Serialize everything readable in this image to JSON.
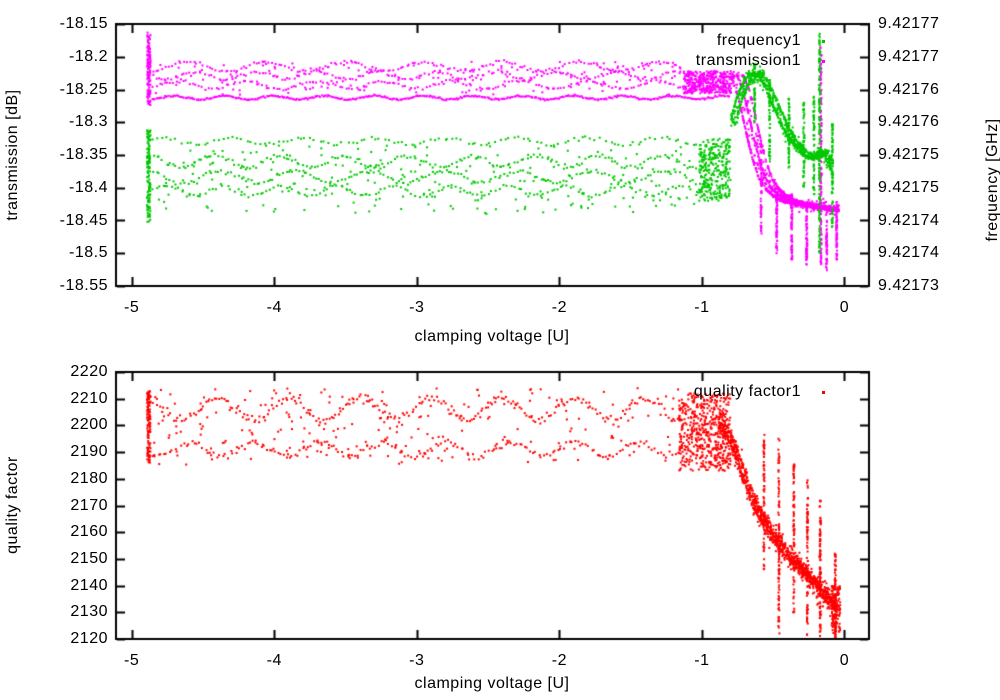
{
  "figure": {
    "background": "#ffffff",
    "text_color": "#000000",
    "frame_color": "#000000"
  },
  "chart_data": [
    {
      "id": "transmission-frequency-vs-voltage",
      "type": "scatter",
      "title": "",
      "xlabel": "clamping voltage [U]",
      "ylabel": "transmission [dB]",
      "y2label": "frequency [GHz]",
      "xlim": [
        -5.11,
        0.172
      ],
      "ylim": [
        -18.55,
        -18.15
      ],
      "y2lim": [
        9.42173,
        9.42177
      ],
      "grid": false,
      "xticks": [
        {
          "label": "-5",
          "value": -5
        },
        {
          "label": "-4",
          "value": -4
        },
        {
          "label": "-3",
          "value": -3
        },
        {
          "label": "-2",
          "value": -2
        },
        {
          "label": "-1",
          "value": -1
        },
        {
          "label": "0",
          "value": 0
        }
      ],
      "yticks": [
        {
          "label": "-18.15",
          "value": -18.15
        },
        {
          "label": "-18.2",
          "value": -18.2
        },
        {
          "label": "-18.25",
          "value": -18.25
        },
        {
          "label": "-18.3",
          "value": -18.3
        },
        {
          "label": "-18.35",
          "value": -18.35
        },
        {
          "label": "-18.4",
          "value": -18.4
        },
        {
          "label": "-18.45",
          "value": -18.45
        },
        {
          "label": "-18.5",
          "value": -18.5
        },
        {
          "label": "-18.55",
          "value": -18.55
        }
      ],
      "y2ticks": [
        "9.42177",
        "9.42177",
        "9.42176",
        "9.42176",
        "9.42175",
        "9.42175",
        "9.42174",
        "9.42174",
        "9.42173"
      ],
      "legend": {
        "position": "top-right-inside",
        "entries": [
          {
            "label": "frequency1",
            "color": "#00c800"
          },
          {
            "label": "transmission1",
            "color": "#ff00ff"
          }
        ]
      },
      "series": [
        {
          "name": "transmission1",
          "color": "#ff00ff",
          "axis": "y1",
          "point_size": 2,
          "segments": [
            {
              "type": "vcluster",
              "x": -4.88,
              "x_jitter": 0.012,
              "y_min": -18.275,
              "y_max": -18.163,
              "n": 130
            },
            {
              "type": "wavy",
              "x_min": -4.86,
              "x_max": -1.13,
              "y": -18.215,
              "amplitude": 0.007,
              "period": 0.55,
              "jitter": 0.004,
              "n": 170
            },
            {
              "type": "wavy",
              "x_min": -4.86,
              "x_max": -1.13,
              "y": -18.229,
              "amplitude": 0.006,
              "period": 0.42,
              "jitter": 0.0045,
              "n": 170
            },
            {
              "type": "wavy",
              "x_min": -4.86,
              "x_max": -1.13,
              "y": -18.243,
              "amplitude": 0.006,
              "period": 0.48,
              "jitter": 0.004,
              "n": 160
            },
            {
              "type": "wavy",
              "x_min": -4.86,
              "x_max": -0.8,
              "y": -18.2625,
              "amplitude": 0.0028,
              "period": 0.35,
              "jitter": 0.0022,
              "n": 420
            },
            {
              "type": "scatter",
              "x_min": -4.86,
              "x_max": -1.13,
              "y_min": -18.258,
              "y_max": -18.207,
              "n": 140
            },
            {
              "type": "scatter",
              "x_min": -1.13,
              "x_max": -0.79,
              "y_min": -18.256,
              "y_max": -18.222,
              "n": 380
            },
            {
              "type": "curve",
              "points": [
                [
                  -0.8,
                  -18.228
                ],
                [
                  -0.76,
                  -18.25
                ],
                [
                  -0.72,
                  -18.285
                ],
                [
                  -0.68,
                  -18.325
                ],
                [
                  -0.64,
                  -18.36
                ],
                [
                  -0.6,
                  -18.385
                ],
                [
                  -0.55,
                  -18.402
                ],
                [
                  -0.5,
                  -18.412
                ],
                [
                  -0.45,
                  -18.418
                ],
                [
                  -0.4,
                  -18.422
                ],
                [
                  -0.35,
                  -18.425
                ],
                [
                  -0.3,
                  -18.427
                ],
                [
                  -0.25,
                  -18.428
                ],
                [
                  -0.2,
                  -18.43
                ],
                [
                  -0.15,
                  -18.432
                ],
                [
                  -0.1,
                  -18.433
                ],
                [
                  -0.04,
                  -18.435
                ]
              ],
              "strand_offsets": [
                0,
                0.045,
                0.09
              ],
              "n_per_strand": 300,
              "strand_spread": 0.003,
              "x_jitter": 0.008,
              "n_diffuse": 250,
              "diffuse_spread": 0.012
            },
            {
              "type": "spike",
              "x": -0.585,
              "y_min": -18.47,
              "y_max": -18.33,
              "n": 60
            },
            {
              "type": "spike",
              "x": -0.475,
              "y_min": -18.5,
              "y_max": -18.4,
              "n": 70
            },
            {
              "type": "spike",
              "x": -0.37,
              "y_min": -18.51,
              "y_max": -18.41,
              "n": 70
            },
            {
              "type": "spike",
              "x": -0.265,
              "y_min": -18.52,
              "y_max": -18.42,
              "n": 70
            },
            {
              "type": "spike",
              "x": -0.165,
              "y_min": -18.525,
              "y_max": -18.185,
              "n": 150
            },
            {
              "type": "spike",
              "x": -0.125,
              "y_min": -18.53,
              "y_max": -18.43,
              "n": 50
            },
            {
              "type": "spike",
              "x": -0.055,
              "y_min": -18.51,
              "y_max": -18.42,
              "n": 60
            }
          ]
        },
        {
          "name": "frequency1",
          "color": "#00c800",
          "axis": "y2",
          "point_size": 2,
          "note": "segment y values given in left-axis display units; right axis maps -18.55..-18.15 dB to 9.42173..9.42177 GHz",
          "segments": [
            {
              "type": "vcluster",
              "x": -4.88,
              "x_jitter": 0.012,
              "y_min": -18.455,
              "y_max": -18.312,
              "n": 130
            },
            {
              "type": "wavy",
              "x_min": -4.86,
              "x_max": -0.98,
              "y": -18.329,
              "amplitude": 0.005,
              "period": 0.5,
              "jitter": 0.004,
              "n": 120
            },
            {
              "type": "wavy",
              "x_min": -4.86,
              "x_max": -0.98,
              "y": -18.36,
              "amplitude": 0.009,
              "period": 0.45,
              "jitter": 0.006,
              "n": 170
            },
            {
              "type": "wavy",
              "x_min": -4.86,
              "x_max": -0.98,
              "y": -18.383,
              "amplitude": 0.009,
              "period": 0.52,
              "jitter": 0.006,
              "n": 170
            },
            {
              "type": "wavy",
              "x_min": -4.86,
              "x_max": -0.98,
              "y": -18.405,
              "amplitude": 0.008,
              "period": 0.4,
              "jitter": 0.005,
              "n": 150
            },
            {
              "type": "scatter",
              "x_min": -4.86,
              "x_max": -0.98,
              "y_min": -18.44,
              "y_max": -18.335,
              "n": 220
            },
            {
              "type": "scatter",
              "x_min": -1.02,
              "x_max": -0.8,
              "y_min": -18.42,
              "y_max": -18.325,
              "n": 300
            },
            {
              "type": "curve",
              "points": [
                [
                  -0.8,
                  -18.3
                ],
                [
                  -0.76,
                  -18.265
                ],
                [
                  -0.72,
                  -18.243
                ],
                [
                  -0.68,
                  -18.23
                ],
                [
                  -0.64,
                  -18.225
                ],
                [
                  -0.6,
                  -18.23
                ],
                [
                  -0.56,
                  -18.245
                ],
                [
                  -0.52,
                  -18.265
                ],
                [
                  -0.48,
                  -18.285
                ],
                [
                  -0.44,
                  -18.305
                ],
                [
                  -0.4,
                  -18.32
                ],
                [
                  -0.36,
                  -18.332
                ],
                [
                  -0.32,
                  -18.342
                ],
                [
                  -0.28,
                  -18.35
                ],
                [
                  -0.24,
                  -18.355
                ],
                [
                  -0.2,
                  -18.35
                ],
                [
                  -0.16,
                  -18.345
                ],
                [
                  -0.12,
                  -18.36
                ],
                [
                  -0.08,
                  -18.38
                ]
              ],
              "strand_offsets": [
                0,
                0.04
              ],
              "n_per_strand": 280,
              "strand_spread": 0.005,
              "x_jitter": 0.006,
              "n_diffuse": 300,
              "diffuse_spread": 0.018
            },
            {
              "type": "spike",
              "x": -0.63,
              "y_min": -18.3,
              "y_max": -18.21,
              "n": 50
            },
            {
              "type": "spike",
              "x": -0.525,
              "y_min": -18.36,
              "y_max": -18.235,
              "n": 60
            },
            {
              "type": "spike",
              "x": -0.39,
              "y_min": -18.37,
              "y_max": -18.26,
              "n": 60
            },
            {
              "type": "spike",
              "x": -0.285,
              "y_min": -18.4,
              "y_max": -18.27,
              "n": 60
            },
            {
              "type": "spike",
              "x": -0.215,
              "y_min": -18.41,
              "y_max": -18.26,
              "n": 60
            },
            {
              "type": "spike",
              "x": -0.175,
              "y_min": -18.5,
              "y_max": -18.163,
              "n": 160
            },
            {
              "type": "spike",
              "x": -0.085,
              "y_min": -18.46,
              "y_max": -18.3,
              "n": 70
            }
          ]
        }
      ]
    },
    {
      "id": "quality-factor-vs-voltage",
      "type": "scatter",
      "title": "",
      "xlabel": "clamping voltage [U]",
      "ylabel": "quality factor",
      "y2label": "",
      "xlim": [
        -5.11,
        0.172
      ],
      "ylim": [
        2120,
        2220
      ],
      "grid": false,
      "xticks": [
        {
          "label": "-5",
          "value": -5
        },
        {
          "label": "-4",
          "value": -4
        },
        {
          "label": "-3",
          "value": -3
        },
        {
          "label": "-2",
          "value": -2
        },
        {
          "label": "-1",
          "value": -1
        },
        {
          "label": "0",
          "value": 0
        }
      ],
      "yticks": [
        {
          "label": "2220",
          "value": 2220
        },
        {
          "label": "2210",
          "value": 2210
        },
        {
          "label": "2200",
          "value": 2200
        },
        {
          "label": "2190",
          "value": 2190
        },
        {
          "label": "2180",
          "value": 2180
        },
        {
          "label": "2170",
          "value": 2170
        },
        {
          "label": "2160",
          "value": 2160
        },
        {
          "label": "2150",
          "value": 2150
        },
        {
          "label": "2140",
          "value": 2140
        },
        {
          "label": "2130",
          "value": 2130
        },
        {
          "label": "2120",
          "value": 2120
        }
      ],
      "y2ticks": [],
      "legend": {
        "position": "top-right-inside",
        "entries": [
          {
            "label": "quality factor1",
            "color": "#ff0000"
          }
        ]
      },
      "series": [
        {
          "name": "quality factor1",
          "color": "#ff0000",
          "axis": "y1",
          "point_size": 2,
          "segments": [
            {
              "type": "vcluster",
              "x": -4.88,
              "x_jitter": 0.012,
              "y_min": 2186,
              "y_max": 2214,
              "n": 120
            },
            {
              "type": "wavy",
              "x_min": -4.86,
              "x_max": -1.16,
              "y": 2206,
              "amplitude": 4,
              "period": 0.5,
              "jitter": 2.5,
              "n": 230
            },
            {
              "type": "wavy",
              "x_min": -4.86,
              "x_max": -1.16,
              "y": 2191,
              "amplitude": 2.5,
              "period": 0.45,
              "jitter": 2,
              "n": 190
            },
            {
              "type": "scatter",
              "x_min": -4.86,
              "x_max": -1.16,
              "y_min": 2185,
              "y_max": 2214,
              "n": 230
            },
            {
              "type": "scatter",
              "x_min": -1.16,
              "x_max": -0.8,
              "y_min": 2183,
              "y_max": 2212,
              "n": 520
            },
            {
              "type": "curve",
              "points": [
                [
                  -0.88,
                  2200
                ],
                [
                  -0.82,
                  2196
                ],
                [
                  -0.76,
                  2188
                ],
                [
                  -0.7,
                  2178
                ],
                [
                  -0.64,
                  2170
                ],
                [
                  -0.58,
                  2164
                ],
                [
                  -0.52,
                  2159
                ],
                [
                  -0.46,
                  2155
                ],
                [
                  -0.4,
                  2151
                ],
                [
                  -0.34,
                  2148
                ],
                [
                  -0.28,
                  2144
                ],
                [
                  -0.22,
                  2141
                ],
                [
                  -0.16,
                  2137
                ],
                [
                  -0.1,
                  2133
                ],
                [
                  -0.05,
                  2130
                ]
              ],
              "strand_offsets": [
                0,
                0.03
              ],
              "n_per_strand": 350,
              "strand_spread": 3,
              "x_jitter": 0.008,
              "n_diffuse": 400,
              "diffuse_spread": 7
            },
            {
              "type": "scatter",
              "x_min": -0.09,
              "x_max": -0.03,
              "y_min": 2122,
              "y_max": 2140,
              "n": 120
            },
            {
              "type": "spike",
              "x": -0.565,
              "y_min": 2146,
              "y_max": 2198,
              "n": 70
            },
            {
              "type": "spike",
              "x": -0.46,
              "y_min": 2122,
              "y_max": 2196,
              "n": 90
            },
            {
              "type": "spike",
              "x": -0.355,
              "y_min": 2130,
              "y_max": 2186,
              "n": 80
            },
            {
              "type": "spike",
              "x": -0.26,
              "y_min": 2121,
              "y_max": 2180,
              "n": 80
            },
            {
              "type": "spike",
              "x": -0.17,
              "y_min": 2121,
              "y_max": 2172,
              "n": 90
            },
            {
              "type": "spike",
              "x": -0.065,
              "y_min": 2120,
              "y_max": 2152,
              "n": 80
            }
          ]
        }
      ]
    }
  ]
}
